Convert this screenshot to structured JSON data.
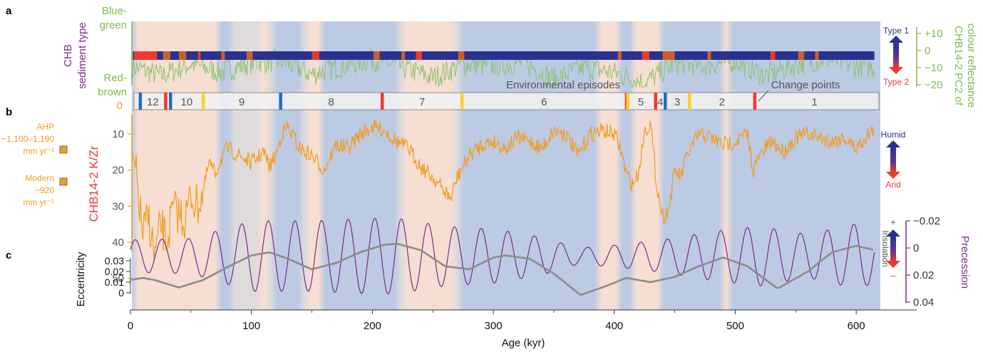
{
  "panels": {
    "a": "a",
    "b": "b",
    "c": "c"
  },
  "colors": {
    "green": "#8dc26f",
    "green_text": "#7fb84f",
    "orange": "#f39c1e",
    "red": "#ed3a2f",
    "blue": "#1f6fb8",
    "navy": "#2b3191",
    "purple": "#7a2c8c",
    "gray": "#8c8c8c",
    "yellow": "#fad227",
    "bg_humid": "#b9c7e3",
    "bg_arid": "#f6ddd0"
  },
  "chart_data": [
    {
      "type": "line",
      "panel": "a",
      "ylabel_left": [
        "CHB",
        "sediment type"
      ],
      "left_top_label": [
        "Blue-",
        "green"
      ],
      "left_bottom_label": [
        "Red-",
        "brown"
      ],
      "ylabel_right": [
        "CHB14-2 PC2 of",
        "colour reflectance"
      ],
      "ticks_right": [
        "+10",
        "0",
        "−10",
        "−20"
      ],
      "ylim": [
        -22,
        14
      ],
      "legend_arrow_top": "Type 1",
      "legend_arrow_bottom": "Type 2",
      "series": [
        {
          "values_x": [
            0,
            25,
            50,
            75,
            100,
            125,
            150,
            175,
            200,
            225,
            250,
            275,
            300,
            325,
            350,
            375,
            400,
            425,
            450,
            475,
            500,
            525,
            550,
            575,
            600,
            615
          ],
          "values_y": [
            2,
            -4,
            3,
            -2,
            4,
            5,
            -3,
            2,
            6,
            1,
            -5,
            3,
            2,
            4,
            -6,
            1,
            -2,
            -8,
            3,
            2,
            5,
            -4,
            3,
            6,
            2,
            1
          ]
        }
      ],
      "sediment_type2_intervals": [
        [
          3,
          22
        ],
        [
          27,
          33
        ],
        [
          40,
          46
        ],
        [
          56,
          58
        ],
        [
          75,
          78
        ],
        [
          96,
          101
        ],
        [
          150,
          156
        ],
        [
          201,
          206
        ],
        [
          224,
          227
        ],
        [
          236,
          241
        ],
        [
          271,
          276
        ],
        [
          403,
          406
        ],
        [
          423,
          429
        ],
        [
          440,
          450
        ],
        [
          477,
          480
        ],
        [
          529,
          533
        ],
        [
          552,
          557
        ],
        [
          566,
          569
        ]
      ]
    },
    {
      "type": "timeline",
      "panel": "episodes",
      "zero_tick": "0",
      "title": "Environmental episodes",
      "change_points_label": "Change points",
      "episodes": [
        {
          "label": "12",
          "start": 8,
          "end": 29
        },
        {
          "label": "10",
          "start": 33,
          "end": 60
        },
        {
          "label": "9",
          "start": 60,
          "end": 124
        },
        {
          "label": "8",
          "start": 124,
          "end": 208
        },
        {
          "label": "7",
          "start": 208,
          "end": 274
        },
        {
          "label": "6",
          "start": 274,
          "end": 410
        },
        {
          "label": "5",
          "start": 410,
          "end": 434
        },
        {
          "label": "4",
          "start": 434,
          "end": 442
        },
        {
          "label": "3",
          "start": 442,
          "end": 462
        },
        {
          "label": "2",
          "start": 462,
          "end": 516
        },
        {
          "label": "1",
          "start": 516,
          "end": 615
        }
      ],
      "change_points": [
        {
          "x": 8,
          "color": "blue"
        },
        {
          "x": 29,
          "color": "red"
        },
        {
          "x": 33,
          "color": "blue"
        },
        {
          "x": 60,
          "color": "yellow"
        },
        {
          "x": 124,
          "color": "blue"
        },
        {
          "x": 208,
          "color": "red"
        },
        {
          "x": 274,
          "color": "yellow"
        },
        {
          "x": 410,
          "color": "red"
        },
        {
          "x": 411,
          "color": "yellow"
        },
        {
          "x": 434,
          "color": "red"
        },
        {
          "x": 442,
          "color": "blue"
        },
        {
          "x": 462,
          "color": "yellow"
        },
        {
          "x": 516,
          "color": "red"
        }
      ]
    },
    {
      "type": "line",
      "panel": "b",
      "ylabel": "CHB14-2 K/Zr",
      "yticks": [
        "10",
        "20",
        "30",
        "40",
        "50"
      ],
      "ylim": [
        3,
        52
      ],
      "inverted": true,
      "legend_arrow_top": "Humid",
      "legend_arrow_bottom": "Arid",
      "markers": [
        {
          "label": [
            "AHP",
            "~1,100–1,190",
            "mm yr⁻¹"
          ],
          "value": 17
        },
        {
          "label": [
            "Modern",
            "~920",
            "mm yr⁻¹"
          ],
          "value": 27
        }
      ],
      "series": [
        {
          "values_x": [
            0,
            5,
            10,
            15,
            20,
            25,
            30,
            35,
            40,
            45,
            50,
            55,
            60,
            65,
            70,
            75,
            80,
            90,
            100,
            110,
            115,
            120,
            125,
            130,
            140,
            150,
            160,
            170,
            180,
            190,
            200,
            210,
            220,
            230,
            240,
            250,
            260,
            265,
            270,
            280,
            290,
            300,
            310,
            320,
            330,
            340,
            350,
            360,
            370,
            380,
            390,
            400,
            405,
            410,
            415,
            420,
            425,
            430,
            435,
            440,
            445,
            450,
            455,
            460,
            470,
            480,
            490,
            500,
            510,
            515,
            520,
            530,
            540,
            550,
            560,
            570,
            580,
            590,
            600,
            610,
            615
          ],
          "values_y": [
            15,
            22,
            38,
            33,
            44,
            35,
            40,
            31,
            32,
            34,
            27,
            30,
            26,
            18,
            21,
            17,
            14,
            16,
            18,
            15,
            19,
            16,
            10,
            8,
            14,
            16,
            20,
            13,
            14,
            10,
            8,
            9,
            12,
            14,
            19,
            22,
            26,
            28,
            22,
            16,
            13,
            12,
            14,
            11,
            12,
            14,
            9,
            10,
            16,
            10,
            9,
            10,
            14,
            21,
            24,
            21,
            9,
            7,
            24,
            33,
            31,
            20,
            22,
            16,
            10,
            11,
            13,
            12,
            10,
            20,
            16,
            12,
            15,
            11,
            10,
            11,
            12,
            11,
            14,
            10,
            9
          ]
        }
      ]
    },
    {
      "type": "line",
      "panel": "c",
      "ylabel_left": "Eccentricity",
      "ecc_ticks": [
        "0",
        "0.01",
        "0.02",
        "0.03"
      ],
      "ylabel_right": "Precession",
      "prec_ticks": [
        "−0.02",
        "0",
        "0.02",
        "0.04"
      ],
      "legend_arrow_label": "Insolation",
      "legend_plus": "+",
      "legend_minus": "−",
      "series": [
        {
          "name": "",
          "role": "eccentricity",
          "values_x": [
            0,
            10,
            20,
            40,
            60,
            80,
            100,
            115,
            130,
            150,
            170,
            190,
            210,
            220,
            240,
            260,
            280,
            300,
            310,
            330,
            350,
            372,
            390,
            410,
            430,
            450,
            470,
            490,
            510,
            535,
            560,
            580,
            600,
            615
          ],
          "values_y": [
            0.012,
            0.014,
            0.012,
            0.005,
            0.012,
            0.024,
            0.035,
            0.038,
            0.032,
            0.022,
            0.028,
            0.038,
            0.045,
            0.046,
            0.04,
            0.025,
            0.022,
            0.033,
            0.035,
            0.032,
            0.018,
            -0.002,
            0.005,
            0.014,
            0.01,
            0.015,
            0.025,
            0.033,
            0.025,
            0.004,
            0.02,
            0.038,
            0.044,
            0.04
          ]
        },
        {
          "name": "",
          "role": "precession",
          "form": "quasi-periodic",
          "period_kyr": 22,
          "amplitude_x": [
            0,
            50,
            100,
            150,
            200,
            220,
            260,
            300,
            340,
            370,
            400,
            440,
            480,
            520,
            560,
            600,
            615
          ],
          "amplitude_y": [
            0.012,
            0.013,
            0.026,
            0.026,
            0.028,
            0.028,
            0.022,
            0.02,
            0.014,
            0.006,
            0.008,
            0.012,
            0.018,
            0.022,
            0.016,
            0.024,
            0.02
          ]
        }
      ],
      "xlabel": "Age (kyr)",
      "xticks": [
        "0",
        "100",
        "200",
        "300",
        "400",
        "500",
        "600"
      ],
      "xlim": [
        0,
        650
      ]
    }
  ]
}
